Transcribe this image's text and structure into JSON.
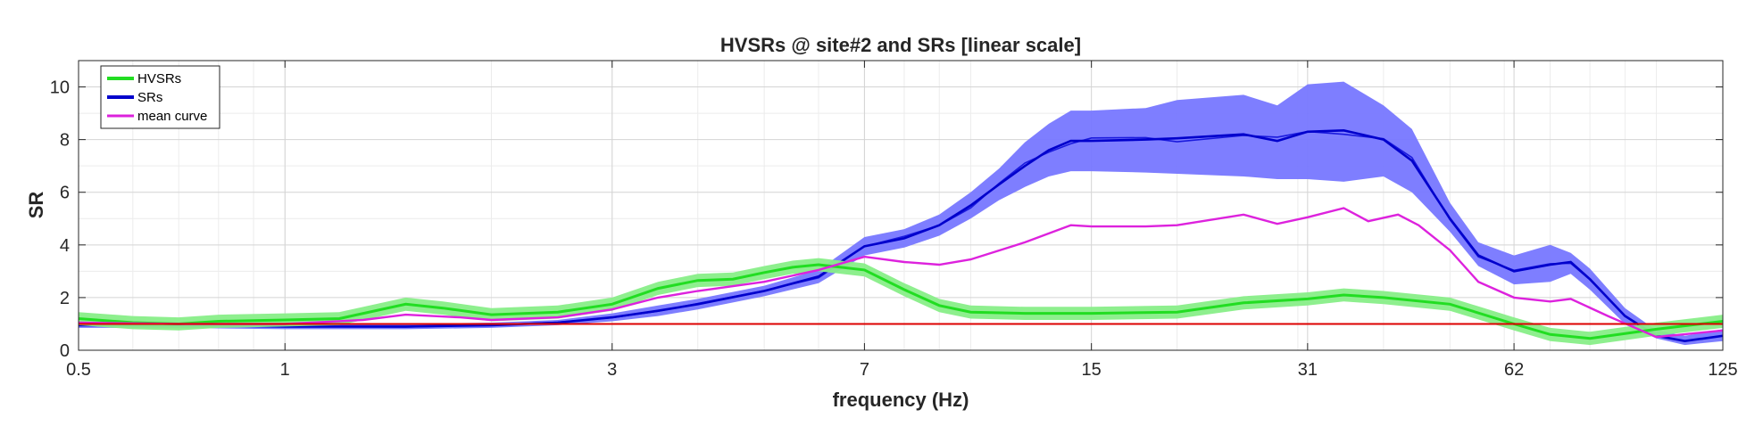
{
  "chart_data": {
    "type": "line",
    "title": "HVSRs @ site#2 and SRs [linear scale]",
    "xlabel": "frequency (Hz)",
    "ylabel": "SR",
    "x_scale": "log",
    "xlim": [
      0.5,
      125
    ],
    "ylim": [
      0,
      11
    ],
    "x_ticks": [
      0.5,
      1,
      3,
      7,
      15,
      31,
      62,
      125
    ],
    "x_tick_labels": [
      "0.5",
      "1",
      "3",
      "7",
      "15",
      "31",
      "62",
      "125"
    ],
    "y_ticks": [
      0,
      2,
      4,
      6,
      8,
      10
    ],
    "y_tick_labels": [
      "0",
      "2",
      "4",
      "6",
      "8",
      "10"
    ],
    "grid": true,
    "legend": {
      "placement": "top-left",
      "entries": [
        {
          "label": "HVSRs",
          "color": "#22dd22"
        },
        {
          "label": "SRs",
          "color": "#0000cc"
        },
        {
          "label": "mean curve",
          "color": "#dd22dd"
        }
      ]
    },
    "reference_line": {
      "y": 1,
      "color": "#dd0000"
    },
    "series": [
      {
        "name": "HVSRs",
        "color": "#22dd22",
        "band_color": "#88ee88",
        "x": [
          0.5,
          0.6,
          0.7,
          0.8,
          1.0,
          1.2,
          1.5,
          1.7,
          2.0,
          2.5,
          3.0,
          3.5,
          4.0,
          4.5,
          5.0,
          5.5,
          6.0,
          7.0,
          8.0,
          9.0,
          10.0,
          12.0,
          15.0,
          20.0,
          25.0,
          31.0,
          35.0,
          40.0,
          50.0,
          62.0,
          70.0,
          80.0,
          100.0,
          125.0
        ],
        "values": [
          1.2,
          1.05,
          1.0,
          1.1,
          1.15,
          1.2,
          1.75,
          1.6,
          1.35,
          1.45,
          1.75,
          2.35,
          2.65,
          2.7,
          2.95,
          3.15,
          3.25,
          3.05,
          2.3,
          1.7,
          1.45,
          1.4,
          1.4,
          1.45,
          1.8,
          1.95,
          2.1,
          2.0,
          1.75,
          1.0,
          0.6,
          0.45,
          0.8,
          1.1
        ],
        "band": 0.25
      },
      {
        "name": "SRs",
        "color": "#0000cc",
        "band_color": "#7777ff",
        "x": [
          0.5,
          0.7,
          1.0,
          1.5,
          2.0,
          2.5,
          3.0,
          3.5,
          4.0,
          5.0,
          6.0,
          7.0,
          8.0,
          9.0,
          10.0,
          11.0,
          12.0,
          13.0,
          14.0,
          15.0,
          18.0,
          20.0,
          25.0,
          28.0,
          31.0,
          35.0,
          40.0,
          44.0,
          50.0,
          55.0,
          62.0,
          70.0,
          75.0,
          80.0,
          90.0,
          100.0,
          110.0,
          125.0
        ],
        "values": [
          0.95,
          0.95,
          0.9,
          0.9,
          0.95,
          1.05,
          1.25,
          1.5,
          1.75,
          2.25,
          2.8,
          3.95,
          4.25,
          4.75,
          5.5,
          6.3,
          7.0,
          7.6,
          7.95,
          7.95,
          8.0,
          8.05,
          8.2,
          7.95,
          8.3,
          8.35,
          8.0,
          7.2,
          5.0,
          3.6,
          3.0,
          3.25,
          3.35,
          2.7,
          1.3,
          0.55,
          0.35,
          0.55
        ],
        "band_upper": [
          1.05,
          1.05,
          1.0,
          1.0,
          1.05,
          1.15,
          1.4,
          1.7,
          1.95,
          2.45,
          3.05,
          4.3,
          4.6,
          5.15,
          6.0,
          6.9,
          7.9,
          8.6,
          9.1,
          9.1,
          9.2,
          9.5,
          9.7,
          9.3,
          10.1,
          10.2,
          9.3,
          8.4,
          5.6,
          4.1,
          3.6,
          4.0,
          3.7,
          3.1,
          1.6,
          0.75,
          0.55,
          0.8
        ],
        "band_lower": [
          0.85,
          0.85,
          0.8,
          0.8,
          0.85,
          0.95,
          1.1,
          1.3,
          1.55,
          2.05,
          2.55,
          3.6,
          3.9,
          4.35,
          5.0,
          5.7,
          6.2,
          6.6,
          6.8,
          6.8,
          6.75,
          6.7,
          6.6,
          6.5,
          6.5,
          6.4,
          6.6,
          6.0,
          4.5,
          3.2,
          2.5,
          2.6,
          2.9,
          2.3,
          1.0,
          0.45,
          0.2,
          0.35
        ]
      },
      {
        "name": "mean curve",
        "color": "#dd22dd",
        "x": [
          0.5,
          0.7,
          1.0,
          1.3,
          1.5,
          1.8,
          2.0,
          2.5,
          3.0,
          3.5,
          4.0,
          5.0,
          6.0,
          7.0,
          8.0,
          9.0,
          10.0,
          12.0,
          14.0,
          15.0,
          18.0,
          20.0,
          25.0,
          28.0,
          31.0,
          35.0,
          38.0,
          42.0,
          45.0,
          50.0,
          55.0,
          62.0,
          70.0,
          75.0,
          85.0,
          100.0,
          125.0
        ],
        "values": [
          1.05,
          1.0,
          1.0,
          1.15,
          1.35,
          1.25,
          1.15,
          1.25,
          1.55,
          2.0,
          2.25,
          2.6,
          3.05,
          3.55,
          3.35,
          3.25,
          3.45,
          4.1,
          4.75,
          4.7,
          4.7,
          4.75,
          5.15,
          4.8,
          5.05,
          5.4,
          4.9,
          5.15,
          4.75,
          3.8,
          2.6,
          2.0,
          1.85,
          1.95,
          1.3,
          0.5,
          0.75
        ]
      }
    ]
  }
}
